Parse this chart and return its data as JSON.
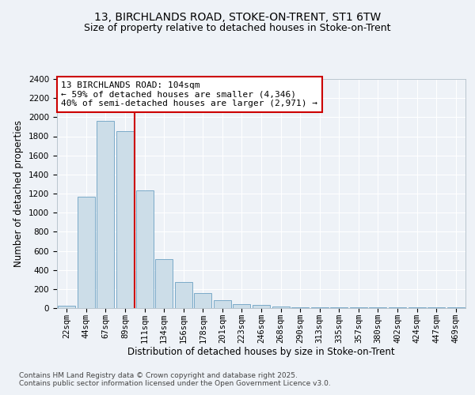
{
  "title1": "13, BIRCHLANDS ROAD, STOKE-ON-TRENT, ST1 6TW",
  "title2": "Size of property relative to detached houses in Stoke-on-Trent",
  "xlabel": "Distribution of detached houses by size in Stoke-on-Trent",
  "ylabel": "Number of detached properties",
  "categories": [
    "22sqm",
    "44sqm",
    "67sqm",
    "89sqm",
    "111sqm",
    "134sqm",
    "156sqm",
    "178sqm",
    "201sqm",
    "223sqm",
    "246sqm",
    "268sqm",
    "290sqm",
    "313sqm",
    "335sqm",
    "357sqm",
    "380sqm",
    "402sqm",
    "424sqm",
    "447sqm",
    "469sqm"
  ],
  "values": [
    25,
    1165,
    1960,
    1850,
    1230,
    510,
    270,
    155,
    80,
    40,
    30,
    20,
    10,
    5,
    5,
    5,
    5,
    5,
    5,
    5,
    5
  ],
  "bar_color": "#ccdde8",
  "bar_edge_color": "#7aaac8",
  "annotation_text": "13 BIRCHLANDS ROAD: 104sqm\n← 59% of detached houses are smaller (4,346)\n40% of semi-detached houses are larger (2,971) →",
  "annotation_box_color": "#ffffff",
  "annotation_box_edge_color": "#cc0000",
  "vline_color": "#cc0000",
  "vline_x": 3.5,
  "ylim": [
    0,
    2400
  ],
  "yticks": [
    0,
    200,
    400,
    600,
    800,
    1000,
    1200,
    1400,
    1600,
    1800,
    2000,
    2200,
    2400
  ],
  "footer1": "Contains HM Land Registry data © Crown copyright and database right 2025.",
  "footer2": "Contains public sector information licensed under the Open Government Licence v3.0.",
  "bg_color": "#eef2f7",
  "plot_bg_color": "#eef2f7",
  "title_fontsize": 10,
  "subtitle_fontsize": 9,
  "axis_label_fontsize": 8.5,
  "tick_fontsize": 7.5,
  "footer_fontsize": 6.5,
  "annotation_fontsize": 8
}
